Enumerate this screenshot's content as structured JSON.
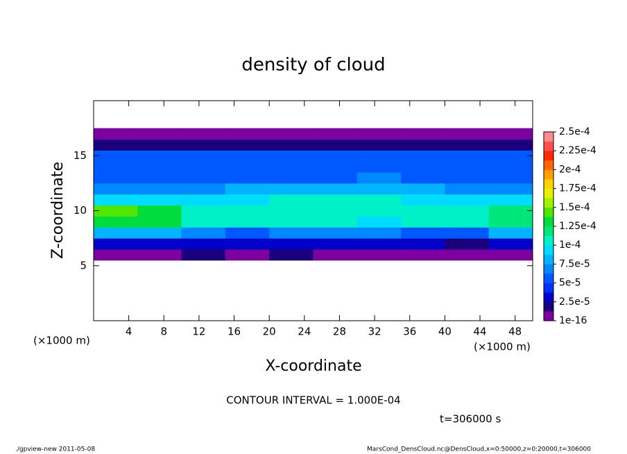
{
  "chart_data": {
    "type": "heatmap",
    "title": "density of cloud",
    "x_label": "X-coordinate",
    "y_label": "Z-coordinate",
    "x_unit": "(×1000 m)",
    "y_unit": "(×1000 m)",
    "contour_note": "CONTOUR INTERVAL = 1.000E-04",
    "time_note": "t=306000 s",
    "footer_left": "./gpview-new  2011-05-08",
    "footer_right": "MarsCond_DensCloud.nc@DensCloud,x=0:50000,z=0:20000,t=306000",
    "xlim": [
      0,
      50
    ],
    "xticks": [
      4,
      8,
      12,
      16,
      20,
      24,
      28,
      32,
      36,
      40,
      44,
      48
    ],
    "ylim": [
      0,
      20
    ],
    "yticks": [
      5,
      10,
      15
    ],
    "x": [
      2.5,
      7.5,
      12.5,
      17.5,
      22.5,
      27.5,
      32.5,
      37.5,
      42.5,
      47.5
    ],
    "y": [
      6,
      7,
      8,
      9,
      10,
      11,
      12,
      13,
      14,
      15,
      16,
      17
    ],
    "values": [
      [
        1.2e-05,
        1e-05,
        1.5e-05,
        1e-05,
        1.3e-05,
        1e-05,
        1.2e-05,
        1.1e-05,
        1e-05,
        1.2e-05
      ],
      [
        3.5e-05,
        3e-05,
        2.5e-05,
        3e-05,
        2.8e-05,
        3.2e-05,
        2.6e-05,
        3e-05,
        2.4e-05,
        3e-05
      ],
      [
        8e-05,
        7.5e-05,
        6.5e-05,
        6e-05,
        6.5e-05,
        7e-05,
        6.5e-05,
        6e-05,
        6e-05,
        7.5e-05
      ],
      [
        0.00013,
        0.000125,
        0.000105,
        0.0001,
        0.000105,
        0.000105,
        9.5e-05,
        0.0001,
        0.000105,
        0.000115
      ],
      [
        0.00014,
        0.00013,
        0.00011,
        0.000105,
        0.00011,
        0.00011,
        0.000105,
        0.000105,
        0.00011,
        0.00012
      ],
      [
        9e-05,
        9e-05,
        9.5e-05,
        9.5e-05,
        0.0001,
        0.0001,
        0.0001,
        9.5e-05,
        9e-05,
        9e-05
      ],
      [
        7e-05,
        7e-05,
        7e-05,
        7.5e-05,
        7.5e-05,
        8e-05,
        8.5e-05,
        7.5e-05,
        7e-05,
        7e-05
      ],
      [
        6e-05,
        6e-05,
        6e-05,
        6e-05,
        6e-05,
        6e-05,
        6.5e-05,
        6e-05,
        6e-05,
        6e-05
      ],
      [
        5.5e-05,
        5.5e-05,
        5.5e-05,
        5.5e-05,
        5.5e-05,
        5.5e-05,
        5.5e-05,
        5.5e-05,
        5.5e-05,
        5.5e-05
      ],
      [
        5e-05,
        5e-05,
        5e-05,
        5e-05,
        5e-05,
        5e-05,
        5e-05,
        5e-05,
        5e-05,
        5e-05
      ],
      [
        2e-05,
        2e-05,
        2e-05,
        2e-05,
        2e-05,
        2e-05,
        2e-05,
        2e-05,
        2e-05,
        2e-05
      ],
      [
        1e-06,
        1e-06,
        1e-06,
        1e-06,
        1e-06,
        1e-06,
        1e-06,
        1e-06,
        1e-06,
        1e-06
      ]
    ],
    "clim": [
      0,
      0.00025
    ],
    "colors": [
      "#7d00a0",
      "#1a007a",
      "#0000c8",
      "#0030ff",
      "#0058ff",
      "#0088ff",
      "#00b4ff",
      "#00dcff",
      "#00f0c8",
      "#00e67a",
      "#00dc3c",
      "#50e600",
      "#a0f000",
      "#e6f000",
      "#ffd200",
      "#ffa000",
      "#ff6400",
      "#ff2800",
      "#ff5050",
      "#ff8c8c"
    ],
    "cticks": [
      {
        "value": 1e-16,
        "label": "1e-16"
      },
      {
        "value": 2.5e-05,
        "label": "2.5e-5"
      },
      {
        "value": 5e-05,
        "label": "5e-5"
      },
      {
        "value": 7.5e-05,
        "label": "7.5e-5"
      },
      {
        "value": 0.0001,
        "label": "1e-4"
      },
      {
        "value": 0.000125,
        "label": "1.25e-4"
      },
      {
        "value": 0.00015,
        "label": "1.5e-4"
      },
      {
        "value": 0.000175,
        "label": "1.75e-4"
      },
      {
        "value": 0.0002,
        "label": "2e-4"
      },
      {
        "value": 0.000225,
        "label": "2.25e-4"
      },
      {
        "value": 0.00025,
        "label": "2.5e-4"
      }
    ]
  }
}
